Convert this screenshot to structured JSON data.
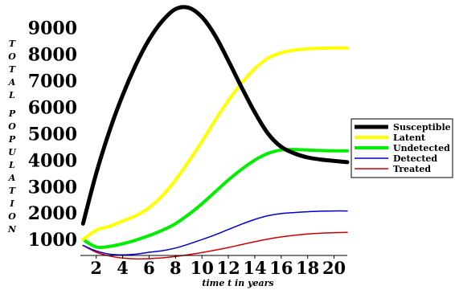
{
  "chart_data": {
    "type": "line",
    "title": "",
    "xlabel": "time t in years",
    "ylabel": "TOTAL POPULATION",
    "xlim": [
      0.8,
      21.0
    ],
    "ylim": [
      400,
      9800
    ],
    "x_ticks": [
      "2",
      "4",
      "6",
      "8",
      "10",
      "12",
      "14",
      "16",
      "18",
      "20"
    ],
    "x_tick_values": [
      2,
      4,
      6,
      8,
      10,
      12,
      14,
      16,
      18,
      20
    ],
    "y_ticks": [
      "1000",
      "2000",
      "3000",
      "4000",
      "5000",
      "6000",
      "7000",
      "8000",
      "9000"
    ],
    "y_tick_values": [
      1000,
      2000,
      3000,
      4000,
      5000,
      6000,
      7000,
      8000,
      9000
    ],
    "legend_position": "right",
    "grid": false,
    "x": [
      1,
      2,
      3,
      4,
      5,
      6,
      7,
      8,
      9,
      10,
      11,
      12,
      13,
      14,
      15,
      16,
      17,
      18,
      19,
      20,
      21
    ],
    "series": [
      {
        "name": "Susceptible",
        "color": "#000000",
        "width": 5,
        "values": [
          1600,
          3500,
          5100,
          6450,
          7600,
          8550,
          9250,
          9700,
          9750,
          9400,
          8700,
          7750,
          6750,
          5800,
          5000,
          4500,
          4250,
          4100,
          4020,
          3970,
          3920
        ]
      },
      {
        "name": "Latent",
        "color": "#ffff00",
        "width": 4,
        "values": [
          1000,
          1350,
          1500,
          1700,
          1900,
          2200,
          2650,
          3250,
          3950,
          4700,
          5500,
          6250,
          6900,
          7450,
          7850,
          8050,
          8150,
          8200,
          8220,
          8230,
          8230
        ]
      },
      {
        "name": "Undetected",
        "color": "#00ee00",
        "width": 4,
        "values": [
          1000,
          720,
          740,
          840,
          980,
          1150,
          1350,
          1600,
          1950,
          2350,
          2800,
          3250,
          3650,
          4000,
          4250,
          4380,
          4400,
          4380,
          4360,
          4350,
          4350
        ]
      },
      {
        "name": "Detected",
        "color": "#0000cc",
        "width": 1.5,
        "values": [
          780,
          570,
          450,
          420,
          450,
          520,
          580,
          680,
          830,
          1000,
          1180,
          1380,
          1580,
          1760,
          1900,
          1980,
          2020,
          2050,
          2070,
          2080,
          2080
        ]
      },
      {
        "name": "Treated",
        "color": "#cc0000",
        "width": 1.5,
        "values": [
          780,
          520,
          380,
          300,
          270,
          280,
          310,
          360,
          430,
          510,
          600,
          700,
          810,
          920,
          1020,
          1100,
          1160,
          1210,
          1240,
          1260,
          1270
        ]
      }
    ]
  }
}
